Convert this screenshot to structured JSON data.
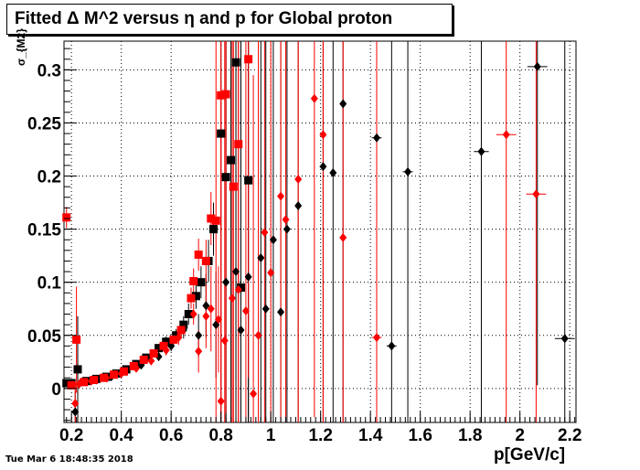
{
  "title": "Fitted Δ M^2 versus η and p for Global proton",
  "timestamp": "Tue Mar  6 18:48:35 2018",
  "chart_data": {
    "type": "scatter",
    "title": "Fitted Δ M^2 versus η and p for Global proton",
    "xlabel": "p[GeV/c]",
    "ylabel": "σ_{M2}",
    "xlim": [
      0.17,
      2.225
    ],
    "ylim": [
      -0.032,
      0.327
    ],
    "grid": true,
    "x_ticks": [
      0.2,
      0.4,
      0.6,
      0.8,
      1,
      1.2,
      1.4,
      1.6,
      1.8,
      2,
      2.2
    ],
    "x_tick_labels": [
      "0.2",
      "0.4",
      "0.6",
      "0.8",
      "1",
      "1.2",
      "1.4",
      "1.6",
      "1.8",
      "2",
      "2.2"
    ],
    "y_ticks": [
      0,
      0.05,
      0.1,
      0.15,
      0.2,
      0.25,
      0.3
    ],
    "y_tick_labels": [
      "0",
      "0.05",
      "0.1",
      "0.15",
      "0.2",
      "0.25",
      "0.3"
    ],
    "series": [
      {
        "marker": "square",
        "color": "#000000",
        "points": [
          {
            "x": 0.18,
            "y": 0.005,
            "ey": 0.003
          },
          {
            "x": 0.2,
            "y": 0.005,
            "ey": 0.003
          },
          {
            "x": 0.225,
            "y": 0.018,
            "ey": 0.05
          },
          {
            "x": 0.26,
            "y": 0.007,
            "ey": 0.002
          },
          {
            "x": 0.3,
            "y": 0.009,
            "ey": 0.002
          },
          {
            "x": 0.34,
            "y": 0.011,
            "ey": 0.002
          },
          {
            "x": 0.38,
            "y": 0.014,
            "ey": 0.002
          },
          {
            "x": 0.42,
            "y": 0.018,
            "ey": 0.002
          },
          {
            "x": 0.46,
            "y": 0.023,
            "ey": 0.003
          },
          {
            "x": 0.5,
            "y": 0.029,
            "ey": 0.003
          },
          {
            "x": 0.55,
            "y": 0.038,
            "ey": 0.004
          },
          {
            "x": 0.58,
            "y": 0.044,
            "ey": 0.005
          },
          {
            "x": 0.62,
            "y": 0.05,
            "ey": 0.006
          },
          {
            "x": 0.65,
            "y": 0.06,
            "ey": 0.008
          },
          {
            "x": 0.67,
            "y": 0.07,
            "ey": 0.01
          },
          {
            "x": 0.7,
            "y": 0.087,
            "ey": 0.012
          },
          {
            "x": 0.72,
            "y": 0.1,
            "ey": 0.015
          },
          {
            "x": 0.75,
            "y": 0.12,
            "ey": 0.02
          },
          {
            "x": 0.77,
            "y": 0.15,
            "ey": 0.025
          },
          {
            "x": 0.8,
            "y": 0.24,
            "ey": 0.3
          },
          {
            "x": 0.82,
            "y": 0.199,
            "ey": 0.3
          },
          {
            "x": 0.84,
            "y": 0.215,
            "ey": 0.3
          },
          {
            "x": 0.86,
            "y": 0.307,
            "ey": 0.3
          },
          {
            "x": 0.88,
            "y": 0.095,
            "ey": 0.3
          },
          {
            "x": 0.91,
            "y": 0.196,
            "ey": 0.3
          }
        ]
      },
      {
        "marker": "diamond",
        "color": "#000000",
        "points": [
          {
            "x": 0.215,
            "y": -0.022,
            "ey": 0.02
          },
          {
            "x": 0.24,
            "y": 0.006,
            "ey": 0.003
          },
          {
            "x": 0.3,
            "y": 0.008,
            "ey": 0.002
          },
          {
            "x": 0.36,
            "y": 0.011,
            "ey": 0.002
          },
          {
            "x": 0.42,
            "y": 0.016,
            "ey": 0.002
          },
          {
            "x": 0.48,
            "y": 0.022,
            "ey": 0.003
          },
          {
            "x": 0.55,
            "y": 0.03,
            "ey": 0.004
          },
          {
            "x": 0.6,
            "y": 0.04,
            "ey": 0.005
          },
          {
            "x": 0.65,
            "y": 0.055,
            "ey": 0.008
          },
          {
            "x": 0.71,
            "y": 0.05,
            "ey": 0.02
          },
          {
            "x": 0.74,
            "y": 0.078,
            "ey": 0.03
          },
          {
            "x": 0.78,
            "y": 0.06,
            "ey": 0.05
          },
          {
            "x": 0.82,
            "y": 0.1,
            "ey": 0.3
          },
          {
            "x": 0.86,
            "y": 0.11,
            "ey": 0.3
          },
          {
            "x": 0.88,
            "y": 0.055,
            "ey": 0.3
          },
          {
            "x": 0.91,
            "y": 0.105,
            "ey": 0.3
          },
          {
            "x": 0.96,
            "y": 0.123,
            "ey": 0.3
          },
          {
            "x": 0.98,
            "y": 0.075,
            "ey": 0.3
          },
          {
            "x": 1.01,
            "y": 0.14,
            "ey": 0.3
          },
          {
            "x": 1.04,
            "y": 0.072,
            "ey": 0.3
          },
          {
            "x": 1.065,
            "y": 0.15,
            "ey": 0.3
          },
          {
            "x": 1.11,
            "y": 0.172,
            "ey": 0.3
          },
          {
            "x": 1.21,
            "y": 0.209,
            "ey": 0.3
          },
          {
            "x": 1.25,
            "y": 0.203,
            "ey": 0.3
          },
          {
            "x": 1.29,
            "y": 0.268,
            "ey": 0.3
          },
          {
            "x": 1.425,
            "y": 0.236,
            "ey": 0.3,
            "ex": 0.02
          },
          {
            "x": 1.485,
            "y": 0.04,
            "ey": 0.3,
            "ex": 0.02
          },
          {
            "x": 1.55,
            "y": 0.204,
            "ey": 0.3,
            "ex": 0.02
          },
          {
            "x": 1.845,
            "y": 0.223,
            "ey": 0.3,
            "ex": 0.03
          },
          {
            "x": 2.07,
            "y": 0.303,
            "ey": 0.3,
            "ex": 0.04
          },
          {
            "x": 2.18,
            "y": 0.047,
            "ey": 0.3,
            "ex": 0.04
          }
        ]
      },
      {
        "marker": "square",
        "color": "#ff0000",
        "points": [
          {
            "x": 0.18,
            "y": 0.161,
            "ey": 0.01
          },
          {
            "x": 0.2,
            "y": 0.003,
            "ey": 0.003
          },
          {
            "x": 0.22,
            "y": 0.046,
            "ey": 0.05
          },
          {
            "x": 0.25,
            "y": 0.006,
            "ey": 0.002
          },
          {
            "x": 0.29,
            "y": 0.008,
            "ey": 0.002
          },
          {
            "x": 0.33,
            "y": 0.01,
            "ey": 0.002
          },
          {
            "x": 0.37,
            "y": 0.013,
            "ey": 0.002
          },
          {
            "x": 0.41,
            "y": 0.016,
            "ey": 0.002
          },
          {
            "x": 0.45,
            "y": 0.021,
            "ey": 0.003
          },
          {
            "x": 0.49,
            "y": 0.027,
            "ey": 0.003
          },
          {
            "x": 0.53,
            "y": 0.033,
            "ey": 0.004
          },
          {
            "x": 0.57,
            "y": 0.04,
            "ey": 0.005
          },
          {
            "x": 0.61,
            "y": 0.046,
            "ey": 0.006
          },
          {
            "x": 0.64,
            "y": 0.055,
            "ey": 0.008
          },
          {
            "x": 0.68,
            "y": 0.085,
            "ey": 0.01
          },
          {
            "x": 0.69,
            "y": 0.101,
            "ey": 0.012
          },
          {
            "x": 0.71,
            "y": 0.126,
            "ey": 0.015
          },
          {
            "x": 0.74,
            "y": 0.12,
            "ey": 0.02
          },
          {
            "x": 0.76,
            "y": 0.16,
            "ey": 0.025
          },
          {
            "x": 0.78,
            "y": 0.158,
            "ey": 0.3
          },
          {
            "x": 0.8,
            "y": 0.276,
            "ey": 0.3
          },
          {
            "x": 0.82,
            "y": 0.277,
            "ey": 0.3
          },
          {
            "x": 0.85,
            "y": 0.19,
            "ey": 0.3
          },
          {
            "x": 0.87,
            "y": 0.23,
            "ey": 0.3
          },
          {
            "x": 0.91,
            "y": 0.31,
            "ey": 0.3
          }
        ]
      },
      {
        "marker": "diamond",
        "color": "#ff0000",
        "points": [
          {
            "x": 0.215,
            "y": -0.014,
            "ey": 0.02
          },
          {
            "x": 0.23,
            "y": 0.004,
            "ey": 0.003
          },
          {
            "x": 0.28,
            "y": 0.007,
            "ey": 0.002
          },
          {
            "x": 0.34,
            "y": 0.01,
            "ey": 0.002
          },
          {
            "x": 0.4,
            "y": 0.014,
            "ey": 0.002
          },
          {
            "x": 0.46,
            "y": 0.019,
            "ey": 0.003
          },
          {
            "x": 0.52,
            "y": 0.026,
            "ey": 0.004
          },
          {
            "x": 0.58,
            "y": 0.036,
            "ey": 0.005
          },
          {
            "x": 0.63,
            "y": 0.048,
            "ey": 0.007
          },
          {
            "x": 0.69,
            "y": 0.07,
            "ey": 0.01
          },
          {
            "x": 0.71,
            "y": 0.035,
            "ey": 0.02
          },
          {
            "x": 0.74,
            "y": 0.068,
            "ey": 0.03
          },
          {
            "x": 0.76,
            "y": 0.075,
            "ey": 0.04
          },
          {
            "x": 0.79,
            "y": 0.065,
            "ey": 0.05
          },
          {
            "x": 0.8,
            "y": -0.012,
            "ey": 0.3
          },
          {
            "x": 0.815,
            "y": 0.045,
            "ey": 0.3
          },
          {
            "x": 0.845,
            "y": 0.085,
            "ey": 0.3
          },
          {
            "x": 0.87,
            "y": 0.093,
            "ey": 0.3
          },
          {
            "x": 0.9,
            "y": 0.073,
            "ey": 0.3
          },
          {
            "x": 0.93,
            "y": -0.005,
            "ey": 0.3
          },
          {
            "x": 0.95,
            "y": 0.05,
            "ey": 0.3
          },
          {
            "x": 0.975,
            "y": 0.147,
            "ey": 0.3
          },
          {
            "x": 1.0,
            "y": 0.109,
            "ey": 0.3
          },
          {
            "x": 1.04,
            "y": 0.181,
            "ey": 0.3
          },
          {
            "x": 1.06,
            "y": 0.159,
            "ey": 0.3
          },
          {
            "x": 1.11,
            "y": 0.197,
            "ey": 0.3
          },
          {
            "x": 1.175,
            "y": 0.273,
            "ey": 0.3
          },
          {
            "x": 1.21,
            "y": 0.239,
            "ey": 0.3
          },
          {
            "x": 1.29,
            "y": 0.142,
            "ey": 0.3
          },
          {
            "x": 1.425,
            "y": 0.048,
            "ey": 0.3,
            "ex": 0.02
          },
          {
            "x": 1.945,
            "y": 0.239,
            "ey": 0.3,
            "ex": 0.04
          },
          {
            "x": 2.065,
            "y": 0.183,
            "ey": 0.3,
            "ex": 0.04
          }
        ]
      }
    ]
  }
}
